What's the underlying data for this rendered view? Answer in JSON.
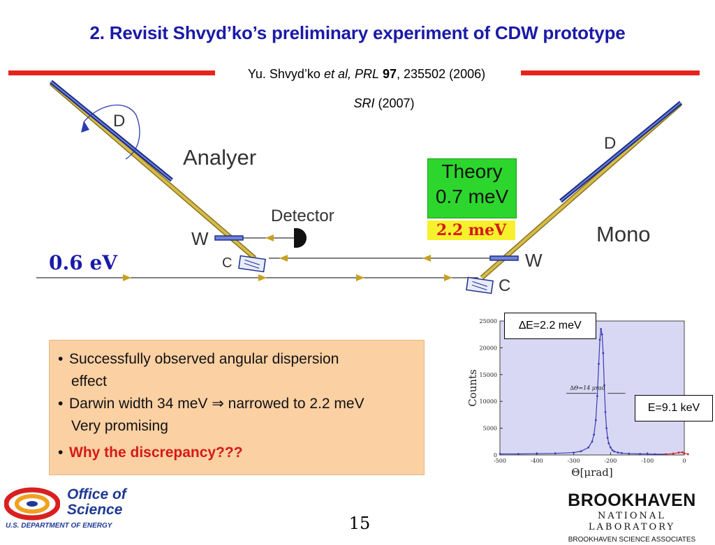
{
  "slide": {
    "title": "2. Revisit Shvyd’ko’s preliminary experiment of CDW prototype",
    "page_number": "15"
  },
  "reference": {
    "line1_author": "Yu. Shvyd’ko ",
    "line1_etal": "et al, PRL",
    "line1_vol": " 97",
    "line1_rest": ", 235502 (2006)",
    "line2_journal": "SRI",
    "line2_year": " (2007)"
  },
  "diagram": {
    "labels": {
      "analyzer": "Analyer",
      "mono": "Mono",
      "detector": "Detector",
      "d_left": "D",
      "d_right": "D",
      "w_left": "W",
      "w_right": "W",
      "c_left": "C",
      "c_right": "C",
      "beam_energy": "0.6 eV"
    },
    "theory_box": {
      "line1": "Theory",
      "line2": "0.7 meV"
    },
    "measured_box": "2.2 meV"
  },
  "bullets": [
    {
      "text": "Successfully observed angular dispersion",
      "cont": "effect"
    },
    {
      "text": "Darwin width 34 meV ⇒ narrowed to 2.2 meV",
      "cont": "Very promising"
    },
    {
      "text": "Why the discrepancy???",
      "emphasis": true
    }
  ],
  "chart_annotations": {
    "delta_e": "∆E=2.2 meV",
    "energy": "E=9.1 keV",
    "fwhm_label": "∆Θ=14 μrad"
  },
  "chart_data": {
    "type": "line",
    "xlabel": "Θ[μrad]",
    "ylabel": "Counts",
    "xlim": [
      -500,
      0
    ],
    "ylim": [
      0,
      25000
    ],
    "xticks": [
      -500,
      -400,
      -300,
      -200,
      -100,
      0
    ],
    "yticks": [
      0,
      5000,
      10000,
      15000,
      20000,
      25000
    ],
    "series": [
      {
        "color": "#3b3bb5",
        "x": [
          -500,
          -450,
          -400,
          -350,
          -300,
          -280,
          -260,
          -250,
          -245,
          -240,
          -236,
          -232,
          -229,
          -226,
          -223,
          -220,
          -217,
          -214,
          -211,
          -208,
          -205,
          -200,
          -195,
          -190,
          -180,
          -170,
          -150,
          -120,
          -100,
          -80,
          -50
        ],
        "y": [
          200,
          200,
          250,
          300,
          450,
          700,
          1400,
          2500,
          3800,
          6500,
          11000,
          17000,
          21500,
          23500,
          22500,
          19000,
          13000,
          8000,
          5000,
          3200,
          2200,
          1400,
          900,
          650,
          450,
          350,
          250,
          200,
          200,
          150,
          150
        ]
      },
      {
        "color": "#d42020",
        "x": [
          -50,
          -30,
          -15,
          -5,
          0,
          10
        ],
        "y": [
          150,
          250,
          450,
          500,
          300,
          150
        ]
      }
    ]
  },
  "logos": {
    "doe_line1": "Office of",
    "doe_line2": "Science",
    "doe_dept": "U.S. DEPARTMENT OF ENERGY",
    "bnl_main": "BROOKHAVEN",
    "bnl_sub": "NATIONAL LABORATORY",
    "bnl_assoc": "BROOKHAVEN SCIENCE ASSOCIATES"
  },
  "colors": {
    "title": "#1a1aa8",
    "accent_bar": "#e8231c",
    "theory_box": "#2dd62d",
    "measured_box": "#f6f12c",
    "bullet_box": "#fbd0a3",
    "chart_bg": "#d8d8f4"
  }
}
